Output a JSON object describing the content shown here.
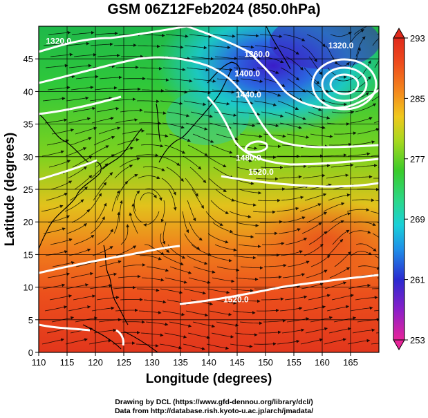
{
  "title": "GSM 06Z12Feb2024 (850.0hPa)",
  "credit_line1": "Drawing by DCL (https://www.gfd-dennou.org/library/dcl/)",
  "credit_line2": "Data from http://database.rish.kyoto-u.ac.jp/arch/jmadata/",
  "chart_data": {
    "type": "heatmap",
    "xlabel": "Longitude (degrees)",
    "ylabel": "Latitude  (degrees)",
    "xlim": [
      110,
      170
    ],
    "ylim": [
      0,
      50
    ],
    "x_ticks": [
      "110",
      "115",
      "120",
      "125",
      "130",
      "135",
      "140",
      "145",
      "150",
      "155",
      "160",
      "165"
    ],
    "y_ticks": [
      "0",
      "5",
      "10",
      "15",
      "20",
      "25",
      "30",
      "35",
      "40",
      "45"
    ],
    "colorbar": {
      "ticks": [
        "253",
        "261",
        "269",
        "277",
        "285",
        "293"
      ],
      "range": [
        253,
        293
      ],
      "colors": [
        "#e8249a",
        "#8a1fc9",
        "#2a2ad0",
        "#1f8fe8",
        "#19d0d8",
        "#2ad88a",
        "#3acb2a",
        "#a8d81e",
        "#f0c81c",
        "#f48a1c",
        "#ee4a1c",
        "#e02a1c"
      ]
    },
    "contour_labels": [
      {
        "text": "1320.0",
        "lon": 113.5,
        "lat": 47.3
      },
      {
        "text": "1360.0",
        "lon": 148.5,
        "lat": 45.3
      },
      {
        "text": "1400.0",
        "lon": 146.8,
        "lat": 42.3
      },
      {
        "text": "1440.0",
        "lon": 147.0,
        "lat": 39.1
      },
      {
        "text": "1320.0",
        "lon": 163.3,
        "lat": 46.6
      },
      {
        "text": "1480.0",
        "lon": 147.0,
        "lat": 29.4
      },
      {
        "text": "1520.0",
        "lon": 149.2,
        "lat": 27.2
      },
      {
        "text": "1520.0",
        "lon": 144.8,
        "lat": 7.7
      }
    ]
  }
}
